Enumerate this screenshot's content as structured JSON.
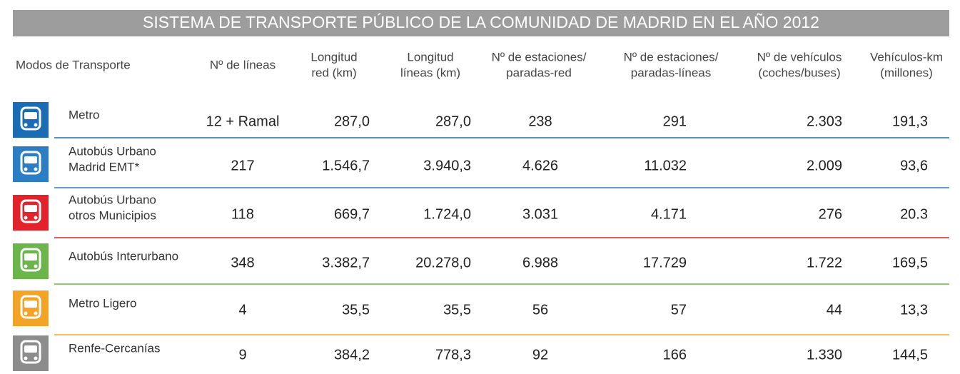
{
  "title": "SISTEMA DE TRANSPORTE PÚBLICO DE LA COMUNIDAD DE MADRID EN EL AÑO 2012",
  "table": {
    "headers": [
      [
        "Modos de Transporte"
      ],
      [
        "Nº de líneas"
      ],
      [
        "Longitud",
        "red (km)"
      ],
      [
        "Longitud",
        "líneas (km)"
      ],
      [
        "Nº de estaciones/",
        "paradas-red"
      ],
      [
        "Nº de estaciones/",
        "paradas-líneas"
      ],
      [
        "Nº de vehículos",
        "(coches/buses)"
      ],
      [
        "Vehículos-km",
        "(millones)"
      ]
    ],
    "rows": [
      {
        "name": [
          "Metro"
        ],
        "values": [
          "12 + Ramal",
          "287,0",
          "287,0",
          "238",
          "291",
          "2.303",
          "191,3"
        ]
      },
      {
        "name": [
          "Autobús Urbano",
          "Madrid EMT*"
        ],
        "values": [
          "217",
          "1.546,7",
          "3.940,3",
          "4.626",
          "11.032",
          "2.009",
          "93,6"
        ]
      },
      {
        "name": [
          "Autobús Urbano",
          "otros Municipios"
        ],
        "values": [
          "118",
          "669,7",
          "1.724,0",
          "3.031",
          "4.171",
          "276",
          "20.3"
        ]
      },
      {
        "name": [
          "Autobús Interurbano"
        ],
        "values": [
          "348",
          "3.382,7",
          "20.278,0",
          "6.988",
          "17.729",
          "1.722",
          "169,5"
        ]
      },
      {
        "name": [
          "Metro Ligero"
        ],
        "values": [
          "4",
          "35,5",
          "35,5",
          "56",
          "57",
          "44",
          "13,3"
        ]
      },
      {
        "name": [
          "Renfe-Cercanías"
        ],
        "values": [
          "9",
          "384,2",
          "778,3",
          "92",
          "166",
          "1.330",
          "144,5"
        ]
      }
    ]
  }
}
